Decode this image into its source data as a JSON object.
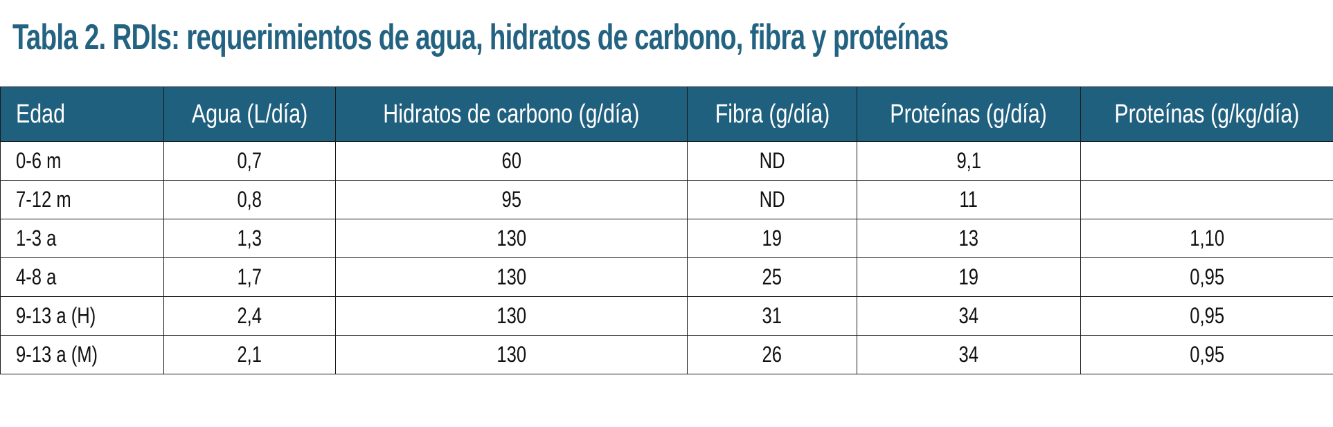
{
  "title": "Tabla 2. RDIs: requerimientos de agua, hidratos de carbono, fibra y proteínas",
  "colors": {
    "title": "#236381",
    "header_background": "#20607f",
    "header_text": "#ffffff",
    "border": "#1a1a1a"
  },
  "table": {
    "headers": [
      "Edad",
      "Agua (L/día)",
      "Hidratos de carbono (g/día)",
      "Fibra (g/día)",
      "Proteínas (g/día)",
      "Proteínas (g/kg/día)"
    ],
    "rows": [
      [
        "0-6 m",
        "0,7",
        "60",
        "ND",
        "9,1",
        ""
      ],
      [
        "7-12 m",
        "0,8",
        "95",
        "ND",
        "11",
        ""
      ],
      [
        "1-3 a",
        "1,3",
        "130",
        "19",
        "13",
        "1,10"
      ],
      [
        "4-8 a",
        "1,7",
        "130",
        "25",
        "19",
        "0,95"
      ],
      [
        "9-13 a (H)",
        "2,4",
        "130",
        "31",
        "34",
        "0,95"
      ],
      [
        "9-13 a (M)",
        "2,1",
        "130",
        "26",
        "34",
        "0,95"
      ]
    ]
  }
}
